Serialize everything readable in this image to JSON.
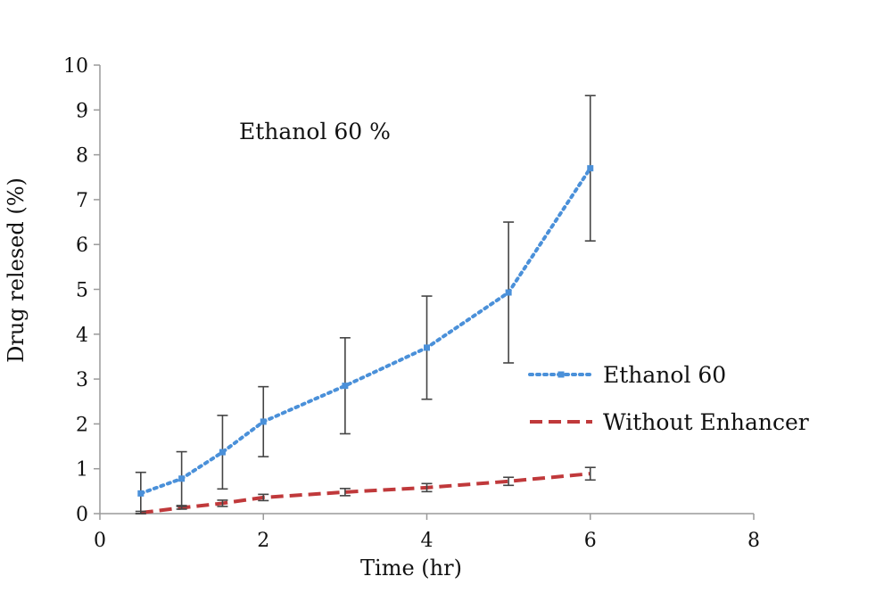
{
  "chart_data": {
    "type": "line",
    "title": "",
    "annotation": "Ethanol 60 %",
    "xlabel": "Time (hr)",
    "ylabel": "Drug relesed (%)",
    "xlim": [
      0,
      8
    ],
    "ylim": [
      0,
      10
    ],
    "x_ticks": [
      0,
      2,
      4,
      6,
      8
    ],
    "y_ticks": [
      0,
      1,
      2,
      3,
      4,
      5,
      6,
      7,
      8,
      9,
      10
    ],
    "grid": false,
    "legend_position": "right",
    "series": [
      {
        "name": "Ethanol 60",
        "color": "#4a90d9",
        "line_style": "dotted",
        "marker": "square",
        "x": [
          0.5,
          1,
          1.5,
          2,
          3,
          4,
          5,
          6
        ],
        "y": [
          0.45,
          0.78,
          1.37,
          2.05,
          2.85,
          3.7,
          4.93,
          7.7
        ],
        "error": [
          0.47,
          0.6,
          0.82,
          0.78,
          1.07,
          1.15,
          1.57,
          1.62
        ]
      },
      {
        "name": "Without Enhancer",
        "color": "#c0393b",
        "line_style": "dashed",
        "marker": "none",
        "x": [
          0.5,
          1,
          1.5,
          2,
          3,
          4,
          5,
          6
        ],
        "y": [
          0.02,
          0.13,
          0.23,
          0.36,
          0.48,
          0.58,
          0.72,
          0.89
        ],
        "error": [
          0.03,
          0.03,
          0.07,
          0.07,
          0.08,
          0.09,
          0.09,
          0.14
        ]
      }
    ]
  }
}
